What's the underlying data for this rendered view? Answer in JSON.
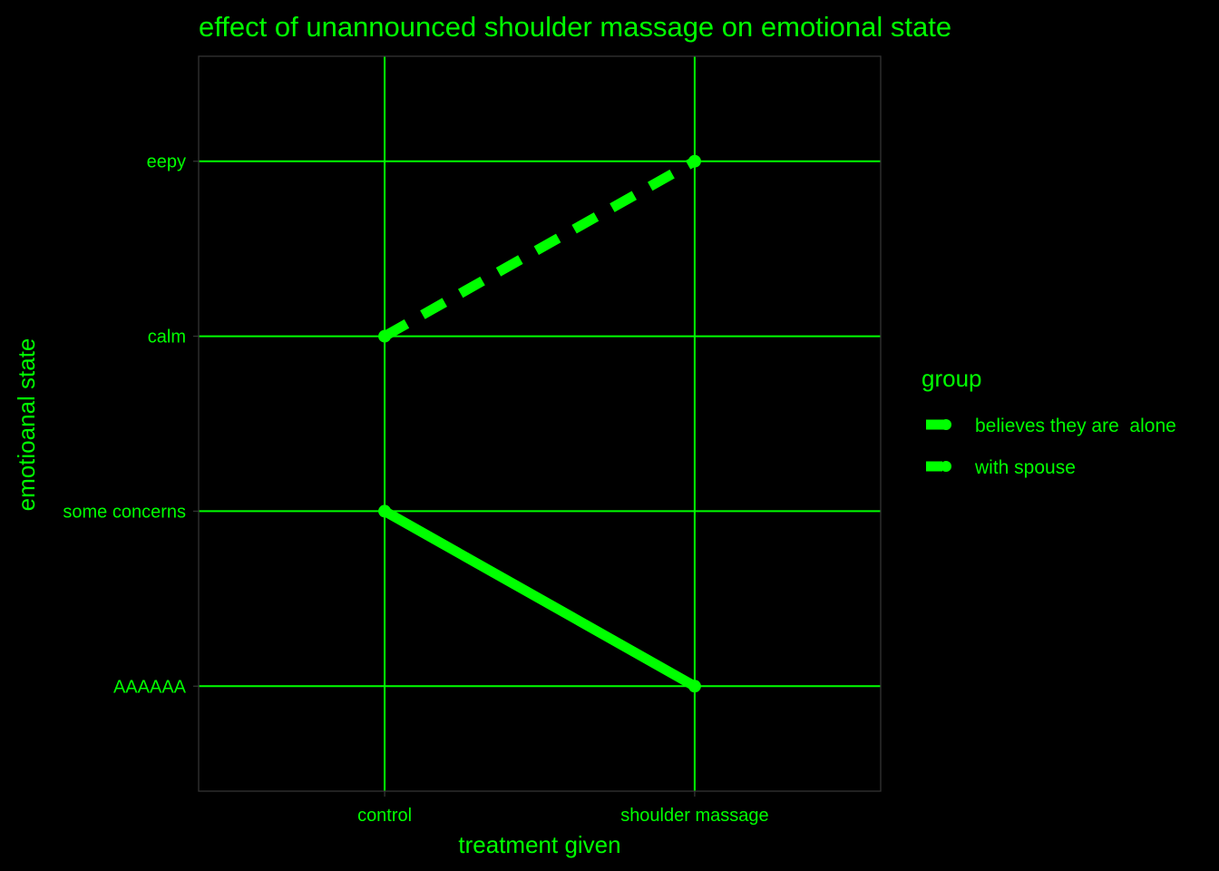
{
  "chart_data": {
    "type": "line",
    "title": "effect of unannounced shoulder massage on emotional state",
    "xlabel": "treatment given",
    "ylabel": "emotioanal state",
    "categories": [
      "control",
      "shoulder massage"
    ],
    "y_levels": [
      "AAAAAA",
      "some concerns",
      "calm",
      "eepy"
    ],
    "series": [
      {
        "name": "believes they are  alone",
        "values": [
          "some concerns",
          "AAAAAA"
        ],
        "line_style": "solid"
      },
      {
        "name": "with spouse",
        "values": [
          "calm",
          "eepy"
        ],
        "line_style": "dashed"
      }
    ],
    "legend_title": "group",
    "legend_position": "right",
    "grid": true,
    "colors": {
      "background": "#000000",
      "text": "#00ff00",
      "grid": "#00ff00",
      "series": "#00ff00",
      "panel_border": "#333333"
    }
  }
}
